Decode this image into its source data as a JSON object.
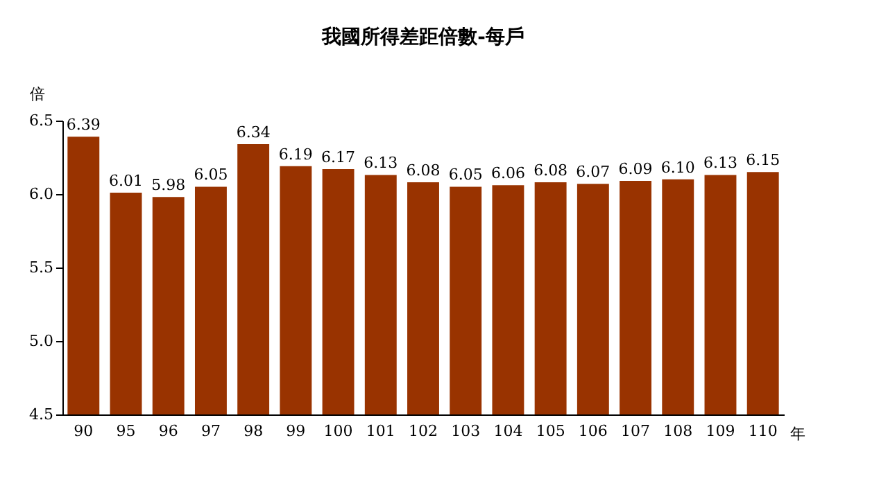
{
  "chart_data": {
    "type": "bar",
    "title": "我國所得差距倍數-每戶",
    "xlabel": "年",
    "ylabel": "倍",
    "categories": [
      "90",
      "95",
      "96",
      "97",
      "98",
      "99",
      "100",
      "101",
      "102",
      "103",
      "104",
      "105",
      "106",
      "107",
      "108",
      "109",
      "110"
    ],
    "values": [
      6.39,
      6.01,
      5.98,
      6.05,
      6.34,
      6.19,
      6.17,
      6.13,
      6.08,
      6.05,
      6.06,
      6.08,
      6.07,
      6.09,
      6.1,
      6.13,
      6.15
    ],
    "value_labels": [
      "6.39",
      "6.01",
      "5.98",
      "6.05",
      "6.34",
      "6.19",
      "6.17",
      "6.13",
      "6.08",
      "6.05",
      "6.06",
      "6.08",
      "6.07",
      "6.09",
      "6.10",
      "6.13",
      "6.15"
    ],
    "color": "#993300",
    "ylim": [
      4.5,
      6.5
    ],
    "yticks": [
      {
        "value": 4.5,
        "label": "4.5"
      },
      {
        "value": 5,
        "label": "5.0"
      },
      {
        "value": 5.5,
        "label": "5.5"
      },
      {
        "value": 6,
        "label": "6.0"
      },
      {
        "value": 6.5,
        "label": "6.5"
      }
    ],
    "grid": false
  }
}
